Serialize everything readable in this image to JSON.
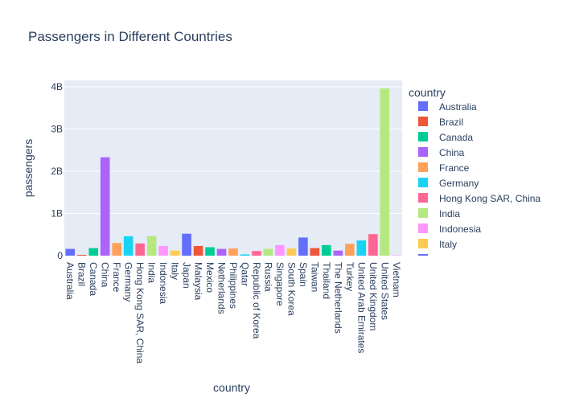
{
  "chart_data": {
    "type": "bar",
    "title": "Passengers in Different Countries",
    "xlabel": "country",
    "ylabel": "passengers",
    "ylim": [
      0,
      4150000000
    ],
    "yticks": [
      {
        "value": 0,
        "label": "0"
      },
      {
        "value": 1000000000,
        "label": "1B"
      },
      {
        "value": 2000000000,
        "label": "2B"
      },
      {
        "value": 3000000000,
        "label": "3B"
      },
      {
        "value": 4000000000,
        "label": "4B"
      }
    ],
    "grid": true,
    "legend": {
      "title": "country",
      "placement": "right",
      "entries": [
        "Australia",
        "Brazil",
        "Canada",
        "China",
        "France",
        "Germany",
        "Hong Kong SAR, China",
        "India",
        "Indonesia",
        "Italy"
      ]
    },
    "palette": [
      "#636efa",
      "#EF553B",
      "#00cc96",
      "#ab63fa",
      "#FFA15A",
      "#19d3f3",
      "#FF6692",
      "#B6E880",
      "#FF97FF",
      "#FECB52"
    ],
    "plot_bgcolor": "#e5ecf6",
    "categories": [
      "Australia",
      "Brazil",
      "Canada",
      "China",
      "France",
      "Germany",
      "Hong Kong SAR, China",
      "India",
      "Indonesia",
      "Italy",
      "Japan",
      "Malaysia",
      "Mexico",
      "Netherlands",
      "Philippines",
      "Qatar",
      "Republic of Korea",
      "Russia",
      "Singapore",
      "South Korea",
      "Spain",
      "Taiwan",
      "Thailand",
      "The Netherlands",
      "Turkey",
      "United Arab Emirates",
      "United Kingdom",
      "United States",
      "Vietnam"
    ],
    "values": [
      160000000,
      20000000,
      180000000,
      2330000000,
      300000000,
      460000000,
      290000000,
      460000000,
      230000000,
      120000000,
      520000000,
      230000000,
      200000000,
      160000000,
      170000000,
      30000000,
      110000000,
      160000000,
      250000000,
      170000000,
      430000000,
      180000000,
      250000000,
      120000000,
      280000000,
      360000000,
      510000000,
      3960000000,
      10000000
    ]
  }
}
